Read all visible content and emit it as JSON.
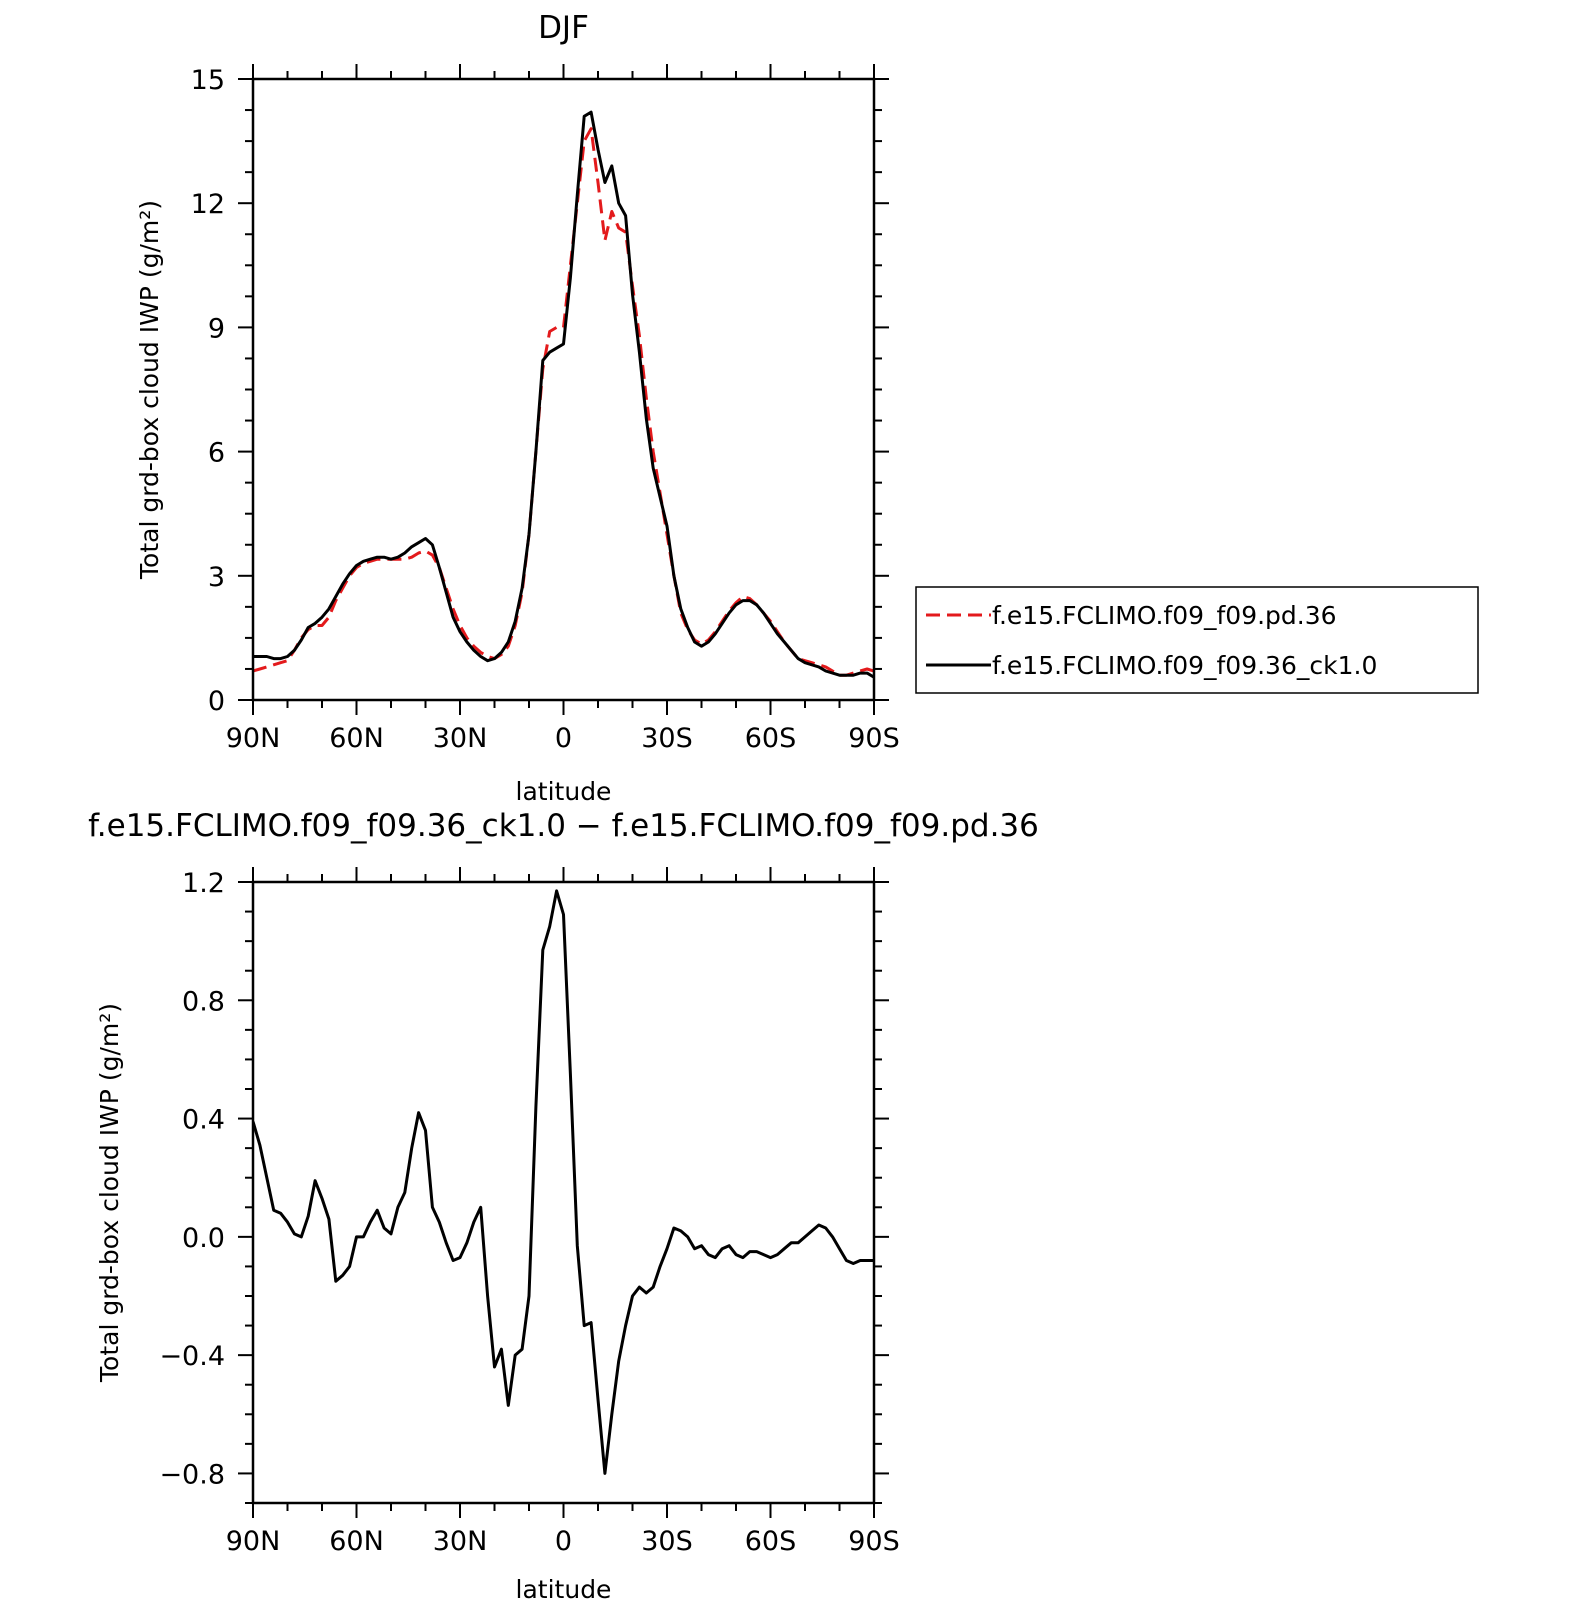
{
  "chart_data": [
    {
      "type": "line",
      "title": "DJF",
      "xlabel": "latitude",
      "ylabel": "Total grd-box cloud IWP (g/m²)",
      "xlim": [
        90,
        -90
      ],
      "ylim": [
        0,
        15
      ],
      "x_ticks": [
        90,
        60,
        30,
        0,
        -30,
        -60,
        -90
      ],
      "x_tick_labels": [
        "90N",
        "60N",
        "30N",
        "0",
        "30S",
        "60S",
        "90S"
      ],
      "y_ticks": [
        0,
        3,
        6,
        9,
        12,
        15
      ],
      "y_tick_labels": [
        "0",
        "3",
        "6",
        "9",
        "12",
        "15"
      ],
      "legend_position": "right",
      "grid": false,
      "series": [
        {
          "name": "f.e15.FCLIMO.f09_f09.pd.36",
          "color": "#e31a1c",
          "dash": "dashed",
          "x": [
            90,
            88,
            86,
            84,
            82,
            80,
            78,
            76,
            74,
            72,
            70,
            68,
            66,
            64,
            62,
            60,
            58,
            56,
            54,
            52,
            50,
            48,
            46,
            44,
            42,
            40,
            38,
            36,
            34,
            32,
            30,
            28,
            26,
            24,
            22,
            20,
            18,
            16,
            14,
            12,
            10,
            8,
            6,
            4,
            2,
            0,
            -2,
            -4,
            -6,
            -8,
            -10,
            -12,
            -14,
            -16,
            -18,
            -20,
            -22,
            -24,
            -26,
            -28,
            -30,
            -32,
            -34,
            -36,
            -38,
            -40,
            -42,
            -44,
            -46,
            -48,
            -50,
            -52,
            -54,
            -56,
            -58,
            -60,
            -62,
            -64,
            -66,
            -68,
            -70,
            -72,
            -74,
            -76,
            -78,
            -80,
            -82,
            -84,
            -86,
            -88,
            -90
          ],
          "values": [
            0.7,
            0.75,
            0.8,
            0.85,
            0.9,
            0.95,
            1.2,
            1.5,
            1.7,
            1.8,
            1.8,
            2.0,
            2.4,
            2.7,
            3.0,
            3.2,
            3.3,
            3.35,
            3.4,
            3.4,
            3.4,
            3.4,
            3.4,
            3.45,
            3.55,
            3.6,
            3.5,
            3.2,
            2.7,
            2.2,
            1.8,
            1.5,
            1.3,
            1.15,
            1.05,
            1.0,
            1.1,
            1.3,
            1.8,
            2.6,
            4.0,
            6.0,
            8.0,
            8.9,
            9.0,
            9.0,
            10.5,
            12.0,
            13.5,
            13.8,
            12.5,
            11.1,
            11.8,
            11.4,
            11.3,
            10.0,
            8.8,
            7.3,
            6.0,
            5.0,
            4.0,
            3.0,
            2.1,
            1.7,
            1.45,
            1.35,
            1.45,
            1.65,
            1.9,
            2.15,
            2.35,
            2.5,
            2.45,
            2.3,
            2.1,
            1.9,
            1.65,
            1.4,
            1.2,
            1.0,
            0.95,
            0.9,
            0.85,
            0.8,
            0.7,
            0.6,
            0.6,
            0.65,
            0.7,
            0.75,
            0.7
          ]
        },
        {
          "name": "f.e15.FCLIMO.f09_f09.36_ck1.0",
          "color": "#000000",
          "dash": "solid",
          "x": [
            90,
            88,
            86,
            84,
            82,
            80,
            78,
            76,
            74,
            72,
            70,
            68,
            66,
            64,
            62,
            60,
            58,
            56,
            54,
            52,
            50,
            48,
            46,
            44,
            42,
            40,
            38,
            36,
            34,
            32,
            30,
            28,
            26,
            24,
            22,
            20,
            18,
            16,
            14,
            12,
            10,
            8,
            6,
            4,
            2,
            0,
            -2,
            -4,
            -6,
            -8,
            -10,
            -12,
            -14,
            -16,
            -18,
            -20,
            -22,
            -24,
            -26,
            -28,
            -30,
            -32,
            -34,
            -36,
            -38,
            -40,
            -42,
            -44,
            -46,
            -48,
            -50,
            -52,
            -54,
            -56,
            -58,
            -60,
            -62,
            -64,
            -66,
            -68,
            -70,
            -72,
            -74,
            -76,
            -78,
            -80,
            -82,
            -84,
            -86,
            -88,
            -90
          ],
          "values": [
            1.05,
            1.05,
            1.05,
            1.0,
            1.0,
            1.05,
            1.2,
            1.45,
            1.75,
            1.85,
            2.0,
            2.2,
            2.5,
            2.8,
            3.05,
            3.25,
            3.35,
            3.4,
            3.45,
            3.45,
            3.4,
            3.45,
            3.55,
            3.7,
            3.8,
            3.9,
            3.75,
            3.2,
            2.6,
            2.0,
            1.65,
            1.4,
            1.2,
            1.05,
            0.95,
            1.0,
            1.15,
            1.4,
            1.9,
            2.7,
            4.0,
            6.0,
            8.2,
            8.4,
            8.5,
            8.6,
            10.2,
            12.2,
            14.1,
            14.2,
            13.3,
            12.5,
            12.9,
            12.0,
            11.7,
            9.8,
            8.4,
            6.8,
            5.6,
            4.9,
            4.2,
            3.0,
            2.2,
            1.75,
            1.4,
            1.3,
            1.4,
            1.6,
            1.85,
            2.1,
            2.3,
            2.4,
            2.4,
            2.3,
            2.1,
            1.85,
            1.6,
            1.4,
            1.2,
            1.0,
            0.9,
            0.85,
            0.8,
            0.7,
            0.65,
            0.6,
            0.6,
            0.6,
            0.65,
            0.65,
            0.55
          ]
        }
      ]
    },
    {
      "type": "line",
      "title": "f.e15.FCLIMO.f09_f09.36_ck1.0 − f.e15.FCLIMO.f09_f09.pd.36",
      "xlabel": "latitude",
      "ylabel": "Total grd-box cloud IWP (g/m²)",
      "xlim": [
        90,
        -90
      ],
      "ylim": [
        -0.9,
        1.2
      ],
      "x_ticks": [
        90,
        60,
        30,
        0,
        -30,
        -60,
        -90
      ],
      "x_tick_labels": [
        "90N",
        "60N",
        "30N",
        "0",
        "30S",
        "60S",
        "90S"
      ],
      "y_ticks": [
        1.2,
        0.8,
        0.4,
        0.0,
        -0.4,
        -0.8
      ],
      "y_tick_labels": [
        "1.2",
        "0.8",
        "0.4",
        "0.0",
        "−0.4",
        "−0.8"
      ],
      "grid": false,
      "series": [
        {
          "color": "#000000",
          "dash": "solid",
          "x": [
            90,
            88,
            86,
            84,
            82,
            80,
            78,
            76,
            74,
            72,
            70,
            68,
            66,
            64,
            62,
            60,
            58,
            56,
            54,
            52,
            50,
            48,
            46,
            44,
            42,
            40,
            38,
            36,
            34,
            32,
            30,
            28,
            26,
            24,
            22,
            20,
            18,
            16,
            14,
            12,
            10,
            8,
            6,
            4,
            2,
            0,
            -2,
            -4,
            -6,
            -8,
            -10,
            -12,
            -14,
            -16,
            -18,
            -20,
            -22,
            -24,
            -26,
            -28,
            -30,
            -32,
            -34,
            -36,
            -38,
            -40,
            -42,
            -44,
            -46,
            -48,
            -50,
            -52,
            -54,
            -56,
            -58,
            -60,
            -62,
            -64,
            -66,
            -68,
            -70,
            -72,
            -74,
            -76,
            -78,
            -80,
            -82,
            -84,
            -86,
            -88,
            -90
          ],
          "values": [
            0.39,
            0.31,
            0.2,
            0.09,
            0.08,
            0.05,
            0.01,
            0.0,
            0.07,
            0.19,
            0.13,
            0.06,
            -0.15,
            -0.13,
            -0.1,
            0.0,
            0.0,
            0.05,
            0.09,
            0.03,
            0.01,
            0.1,
            0.15,
            0.3,
            0.42,
            0.36,
            0.1,
            0.05,
            -0.02,
            -0.08,
            -0.07,
            -0.02,
            0.05,
            0.1,
            -0.2,
            -0.44,
            -0.38,
            -0.57,
            -0.4,
            -0.38,
            -0.2,
            0.44,
            0.97,
            1.05,
            1.17,
            1.09,
            0.55,
            -0.03,
            -0.3,
            -0.29,
            -0.55,
            -0.8,
            -0.6,
            -0.42,
            -0.3,
            -0.2,
            -0.17,
            -0.19,
            -0.17,
            -0.1,
            -0.04,
            0.03,
            0.02,
            0.0,
            -0.04,
            -0.03,
            -0.06,
            -0.07,
            -0.04,
            -0.03,
            -0.06,
            -0.07,
            -0.05,
            -0.05,
            -0.06,
            -0.07,
            -0.06,
            -0.04,
            -0.02,
            -0.02,
            0.0,
            0.02,
            0.04,
            0.03,
            0.0,
            -0.04,
            -0.08,
            -0.09,
            -0.08,
            -0.08,
            -0.08
          ]
        }
      ]
    }
  ]
}
